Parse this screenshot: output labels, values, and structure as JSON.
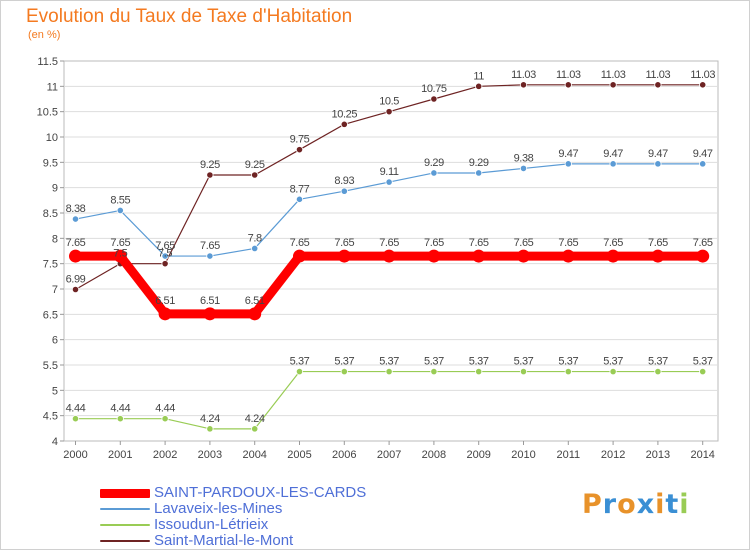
{
  "chart_data": {
    "type": "line",
    "title": "Evolution du Taux de Taxe d'Habitation",
    "ylabel": "(en %)",
    "xlabel": "",
    "ylim": [
      4,
      11.5
    ],
    "yticks": [
      "4",
      "4.5",
      "5",
      "5.5",
      "6",
      "6.5",
      "7",
      "7.5",
      "8",
      "8.5",
      "9",
      "9.5",
      "10",
      "10.5",
      "11",
      "11.5"
    ],
    "x": [
      "2000",
      "2001",
      "2002",
      "2003",
      "2004",
      "2005",
      "2006",
      "2007",
      "2008",
      "2009",
      "2010",
      "2011",
      "2012",
      "2013",
      "2014"
    ],
    "grid": "horizontal",
    "legend_position": "bottom-left",
    "series": [
      {
        "name": "SAINT-PARDOUX-LES-CARDS",
        "color": "#ff0000",
        "values": [
          7.65,
          7.65,
          6.51,
          6.51,
          6.51,
          7.65,
          7.65,
          7.65,
          7.65,
          7.65,
          7.65,
          7.65,
          7.65,
          7.65,
          7.65
        ],
        "labels": [
          "7.65",
          "7.65",
          "6.51",
          "6.51",
          "6.51",
          "7.65",
          "7.65",
          "7.65",
          "7.65",
          "7.65",
          "7.65",
          "7.65",
          "7.65",
          "7.65",
          "7.65"
        ]
      },
      {
        "name": "Lavaveix-les-Mines",
        "color": "#5b9bd5",
        "values": [
          8.38,
          8.55,
          7.65,
          7.65,
          7.8,
          8.77,
          8.93,
          9.11,
          9.29,
          9.29,
          9.38,
          9.47,
          9.47,
          9.47,
          9.47
        ],
        "labels": [
          "8.38",
          "8.55",
          "7.65",
          "7.65",
          "7.8",
          "8.77",
          "8.93",
          "9.11",
          "9.29",
          "9.29",
          "9.38",
          "9.47",
          "9.47",
          "9.47",
          "9.47"
        ]
      },
      {
        "name": "Issoudun-Létrieix",
        "color": "#99cc55",
        "values": [
          4.44,
          4.44,
          4.44,
          4.24,
          4.24,
          5.37,
          5.37,
          5.37,
          5.37,
          5.37,
          5.37,
          5.37,
          5.37,
          5.37,
          5.37
        ],
        "labels": [
          "4.44",
          "4.44",
          "4.44",
          "4.24",
          "4.24",
          "5.37",
          "5.37",
          "5.37",
          "5.37",
          "5.37",
          "5.37",
          "5.37",
          "5.37",
          "5.37",
          "5.37"
        ]
      },
      {
        "name": "Saint-Martial-le-Mont",
        "color": "#6e2323",
        "values": [
          6.99,
          7.5,
          7.5,
          9.25,
          9.25,
          9.75,
          10.25,
          10.5,
          10.75,
          11,
          11.03,
          11.03,
          11.03,
          11.03,
          11.03
        ],
        "labels": [
          "6.99",
          "7.5",
          "7.5",
          "9.25",
          "9.25",
          "9.75",
          "10.25",
          "10.5",
          "10.75",
          "11",
          "11.03",
          "11.03",
          "11.03",
          "11.03",
          "11.03"
        ]
      }
    ]
  },
  "logo": {
    "text": "Proxiti",
    "letters": [
      "P",
      "r",
      "o",
      "x",
      "i",
      "t",
      "i"
    ],
    "colors": [
      "#e8922a",
      "#3a8fd4",
      "#e8922a",
      "#3a8fd4",
      "#e8922a",
      "#3a8fd4",
      "#99cc55"
    ]
  }
}
